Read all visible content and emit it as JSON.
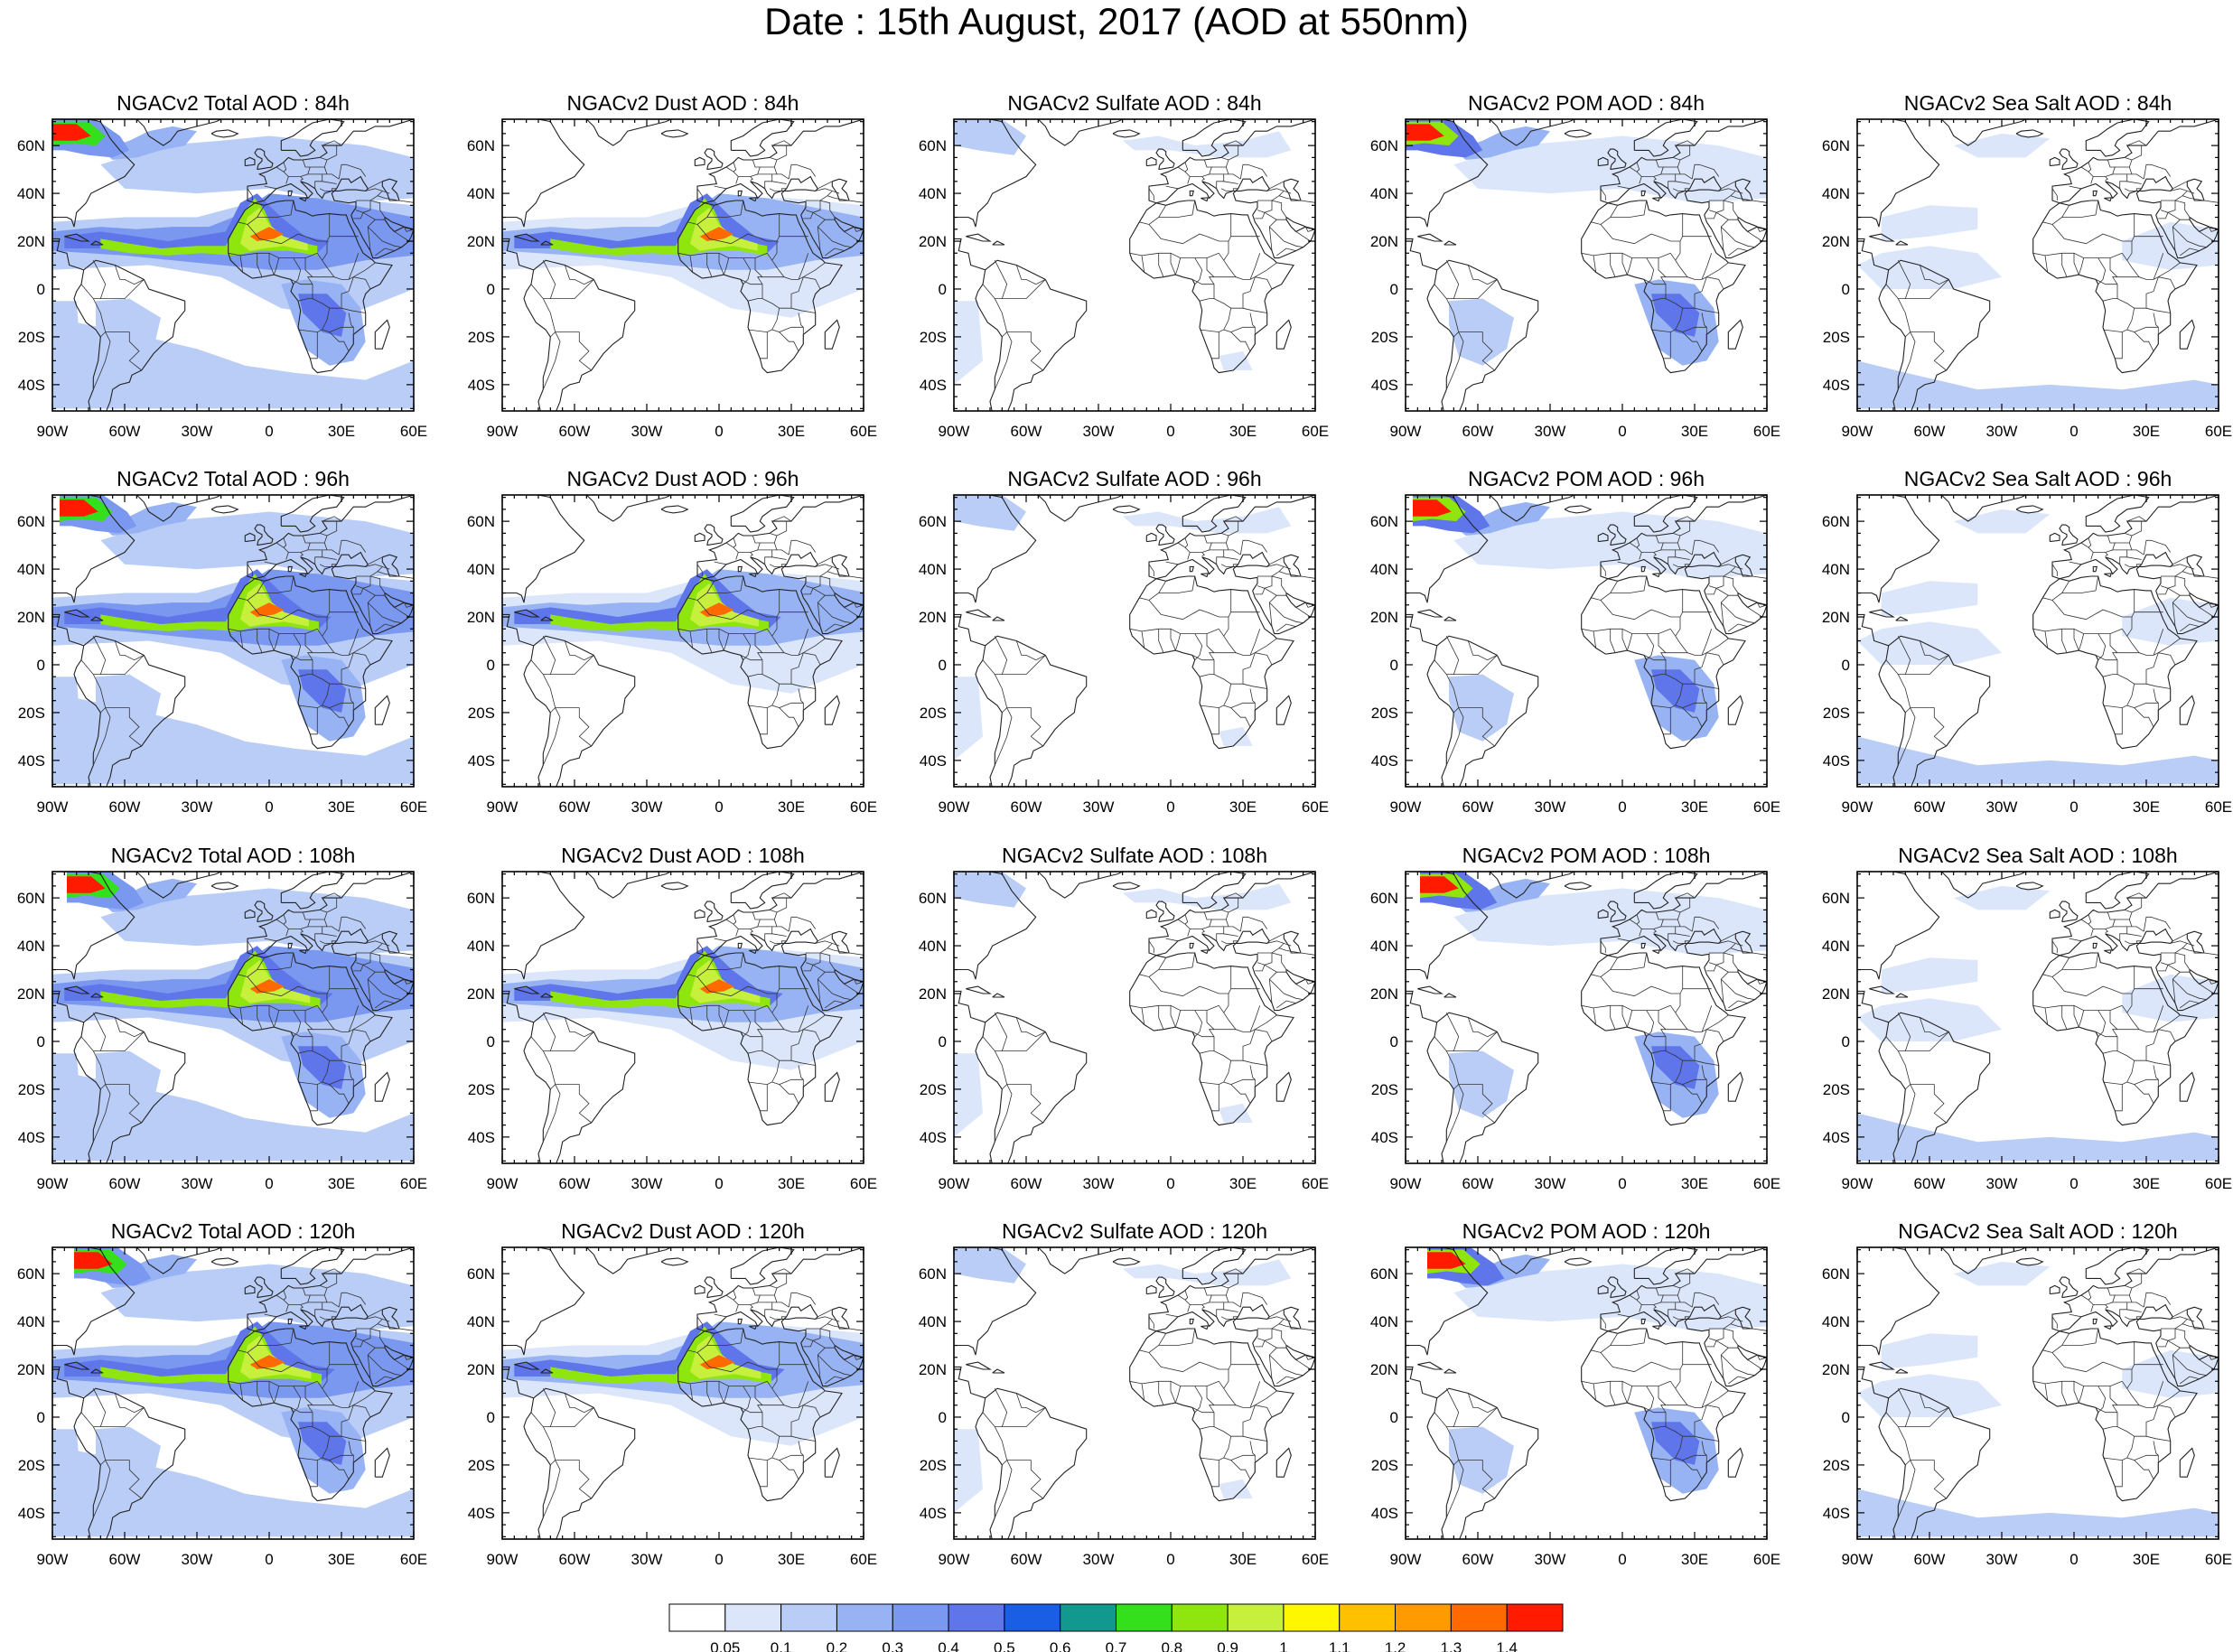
{
  "title": "Date : 15th August, 2017 (AOD at 550nm)",
  "species": [
    "total",
    "dust",
    "sulfate",
    "pom",
    "seasalt"
  ],
  "panel_titles": [
    [
      "NGACv2 Total AOD : 84h",
      "NGACv2 Dust AOD : 84h",
      "NGACv2 Sulfate AOD : 84h",
      "NGACv2 POM AOD : 84h",
      "NGACv2 Sea Salt AOD : 84h"
    ],
    [
      "NGACv2 Total AOD : 96h",
      "NGACv2 Dust AOD : 96h",
      "NGACv2 Sulfate AOD : 96h",
      "NGACv2 POM AOD : 96h",
      "NGACv2 Sea Salt AOD : 96h"
    ],
    [
      "NGACv2 Total AOD : 108h",
      "NGACv2 Dust AOD : 108h",
      "NGACv2 Sulfate AOD : 108h",
      "NGACv2 POM AOD : 108h",
      "NGACv2 Sea Salt AOD : 108h"
    ],
    [
      "NGACv2 Total AOD : 120h",
      "NGACv2 Dust AOD : 120h",
      "NGACv2 Sulfate AOD : 120h",
      "NGACv2 POM AOD : 120h",
      "NGACv2 Sea Salt  AOD : 120h"
    ]
  ],
  "lat_ticks": [
    "60N",
    "40N",
    "20N",
    "0",
    "20S",
    "40S"
  ],
  "lon_ticks": [
    "90W",
    "60W",
    "30W",
    "0",
    "30E",
    "60E"
  ],
  "colorbar": {
    "labels": [
      "0.05",
      "0.1",
      "0.2",
      "0.3",
      "0.4",
      "0.5",
      "0.6",
      "0.7",
      "0.8",
      "0.9",
      "1",
      "1.1",
      "1.2",
      "1.3",
      "1.4"
    ],
    "colors": [
      "#ffffff",
      "#dbe6fb",
      "#b9cdf7",
      "#98b3f4",
      "#7a98f0",
      "#5f75ea",
      "#1a5ee6",
      "#11988f",
      "#33e01b",
      "#8fe60e",
      "#c6f03c",
      "#fff700",
      "#ffc000",
      "#ff9a00",
      "#ff6a00",
      "#ff1a00"
    ]
  }
}
